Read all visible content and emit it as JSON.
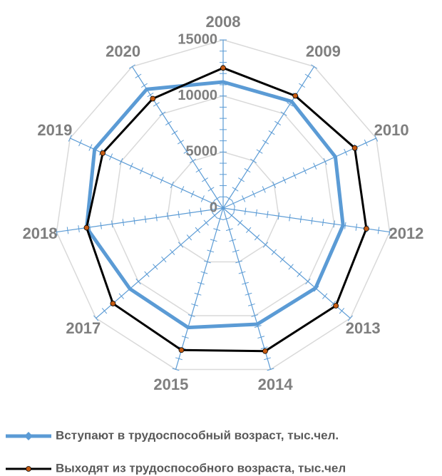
{
  "chart_data": {
    "type": "radar",
    "categories": [
      "2008",
      "2009",
      "2010",
      "2012",
      "2013",
      "2014",
      "2015",
      "2017",
      "2018",
      "2019",
      "2020"
    ],
    "series": [
      {
        "name": "Вступают в трудоспособный возраст, тыс.чел.",
        "color": "#5b9bd5",
        "values": [
          11250,
          11300,
          11000,
          10800,
          10900,
          10800,
          11100,
          11000,
          12300,
          12600,
          12600
        ]
      },
      {
        "name": "Выходят из трудоспособного возраста, тыс.чел",
        "color": "#000000",
        "marker_color": "#c55a11",
        "values": [
          12500,
          11900,
          12900,
          12900,
          13300,
          13300,
          13200,
          13000,
          12300,
          11800,
          11600
        ]
      }
    ],
    "ylim": [
      0,
      15000
    ],
    "yticks": [
      0,
      5000,
      10000,
      15000
    ],
    "grid": true,
    "legend": "bottom"
  }
}
